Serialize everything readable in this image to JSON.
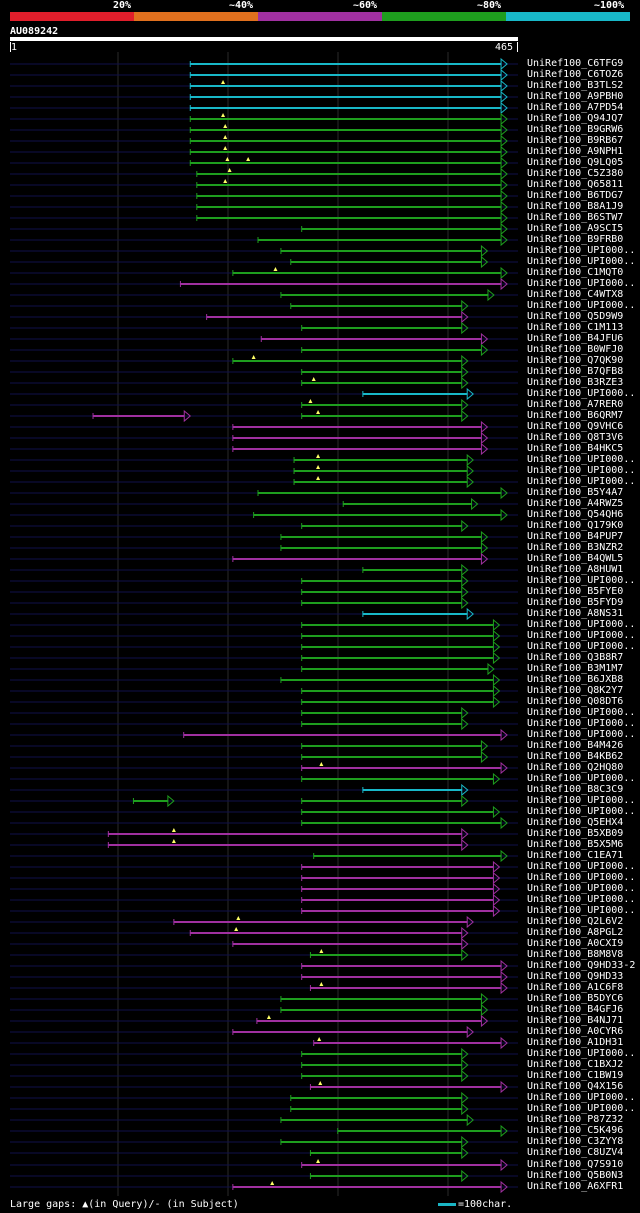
{
  "legend": {
    "items": [
      {
        "label": "20%",
        "color": "#e01e2b"
      },
      {
        "label": "~40%",
        "color": "#e0701e"
      },
      {
        "label": "~60%",
        "color": "#a030a0"
      },
      {
        "label": "~80%",
        "color": "#1e9e1e"
      },
      {
        "label": "~100%",
        "color": "#18b8c8"
      }
    ]
  },
  "query": {
    "id": "AU089242",
    "start": "1",
    "end": "465",
    "length": 465
  },
  "footer": {
    "gaps_text": "Large gaps: ▲(in Query)/- (in Subject)",
    "scale_text": "=100char."
  },
  "hits": [
    {
      "name": "UniRef100_C6TFG9",
      "color": "cyan",
      "start": 165,
      "end": 455,
      "q": []
    },
    {
      "name": "UniRef100_C6TOZ6",
      "color": "cyan",
      "start": 165,
      "end": 455,
      "q": []
    },
    {
      "name": "UniRef100_B3TLS2",
      "color": "cyan",
      "start": 165,
      "end": 455,
      "q": [
        195
      ]
    },
    {
      "name": "UniRef100_A9PBH0",
      "color": "cyan",
      "start": 165,
      "end": 455,
      "q": []
    },
    {
      "name": "UniRef100_A7PD54",
      "color": "cyan",
      "start": 165,
      "end": 455,
      "q": []
    },
    {
      "name": "UniRef100_Q94JQ7",
      "color": "green",
      "start": 165,
      "end": 455,
      "q": [
        195
      ]
    },
    {
      "name": "UniRef100_B9GRW6",
      "color": "green",
      "start": 165,
      "end": 455,
      "q": [
        197
      ]
    },
    {
      "name": "UniRef100_B9RB67",
      "color": "green",
      "start": 165,
      "end": 455,
      "q": [
        197
      ]
    },
    {
      "name": "UniRef100_A9NPH1",
      "color": "green",
      "start": 165,
      "end": 455,
      "q": [
        197
      ]
    },
    {
      "name": "UniRef100_Q9LQ05",
      "color": "green",
      "start": 165,
      "end": 455,
      "q": [
        199,
        218
      ]
    },
    {
      "name": "UniRef100_C5Z380",
      "color": "green",
      "start": 171,
      "end": 455,
      "q": [
        201
      ]
    },
    {
      "name": "UniRef100_Q65811",
      "color": "green",
      "start": 171,
      "end": 455,
      "q": [
        197
      ]
    },
    {
      "name": "UniRef100_B6TDG7",
      "color": "green",
      "start": 171,
      "end": 455,
      "q": []
    },
    {
      "name": "UniRef100_B8A1J9",
      "color": "green",
      "start": 171,
      "end": 455,
      "q": []
    },
    {
      "name": "UniRef100_B6STW7",
      "color": "green",
      "start": 171,
      "end": 455,
      "q": []
    },
    {
      "name": "UniRef100_A9SCI5",
      "color": "green",
      "start": 267,
      "end": 455,
      "q": []
    },
    {
      "name": "UniRef100_B9FRB0",
      "color": "green",
      "start": 227,
      "end": 455,
      "q": []
    },
    {
      "name": "UniRef100_UPI000..",
      "color": "green",
      "start": 248,
      "end": 437,
      "q": []
    },
    {
      "name": "UniRef100_UPI000..",
      "color": "green",
      "start": 257,
      "end": 437,
      "q": []
    },
    {
      "name": "UniRef100_C1MQT0",
      "color": "green",
      "start": 204,
      "end": 455,
      "q": [
        243
      ]
    },
    {
      "name": "UniRef100_UPI000..",
      "color": "purple",
      "start": 156,
      "end": 455,
      "q": []
    },
    {
      "name": "UniRef100_C4WTX8",
      "color": "green",
      "start": 248,
      "end": 443,
      "q": []
    },
    {
      "name": "UniRef100_UPI000..",
      "color": "green",
      "start": 257,
      "end": 419,
      "q": []
    },
    {
      "name": "UniRef100_Q5D9W9",
      "color": "purple",
      "start": 180,
      "end": 419,
      "q": []
    },
    {
      "name": "UniRef100_C1M113",
      "color": "green",
      "start": 267,
      "end": 419,
      "q": []
    },
    {
      "name": "UniRef100_B4JFU6",
      "color": "purple",
      "start": 230,
      "end": 437,
      "q": []
    },
    {
      "name": "UniRef100_B0WFJ0",
      "color": "green",
      "start": 267,
      "end": 437,
      "q": []
    },
    {
      "name": "UniRef100_Q7QK90",
      "color": "green",
      "start": 204,
      "end": 419,
      "q": [
        223
      ]
    },
    {
      "name": "UniRef100_B7QFB8",
      "color": "green",
      "start": 267,
      "end": 419,
      "q": []
    },
    {
      "name": "UniRef100_B3RZE3",
      "color": "green",
      "start": 267,
      "end": 419,
      "q": [
        278
      ]
    },
    {
      "name": "UniRef100_UPI000..",
      "color": "cyan",
      "start": 323,
      "end": 424,
      "q": []
    },
    {
      "name": "UniRef100_A7RER0",
      "color": "green",
      "start": 267,
      "end": 419,
      "q": [
        275
      ]
    },
    {
      "name": "UniRef100_B6QRM7",
      "color": "purple",
      "start": 76,
      "end": 165,
      "q": [],
      "extra": [
        {
          "start": 267,
          "end": 419,
          "q": [
            282
          ]
        }
      ]
    },
    {
      "name": "UniRef100_Q9VHC6",
      "color": "purple",
      "start": 204,
      "end": 437,
      "q": []
    },
    {
      "name": "UniRef100_Q8T3V6",
      "color": "purple",
      "start": 204,
      "end": 437,
      "q": []
    },
    {
      "name": "UniRef100_B4HKC5",
      "color": "purple",
      "start": 204,
      "end": 437,
      "q": []
    },
    {
      "name": "UniRef100_UPI000..",
      "color": "green",
      "start": 260,
      "end": 424,
      "q": [
        282
      ]
    },
    {
      "name": "UniRef100_UPI000..",
      "color": "green",
      "start": 260,
      "end": 424,
      "q": [
        282
      ]
    },
    {
      "name": "UniRef100_UPI000..",
      "color": "green",
      "start": 260,
      "end": 424,
      "q": [
        282
      ]
    },
    {
      "name": "UniRef100_B5Y4A7",
      "color": "green",
      "start": 227,
      "end": 455,
      "q": []
    },
    {
      "name": "UniRef100_A4RWZ5",
      "color": "green",
      "start": 305,
      "end": 428,
      "q": []
    },
    {
      "name": "UniRef100_Q54QH6",
      "color": "green",
      "start": 223,
      "end": 455,
      "q": []
    },
    {
      "name": "UniRef100_Q179K0",
      "color": "green",
      "start": 267,
      "end": 419,
      "q": []
    },
    {
      "name": "UniRef100_B4PUP7",
      "color": "green",
      "start": 248,
      "end": 437,
      "q": []
    },
    {
      "name": "UniRef100_B3NZR2",
      "color": "green",
      "start": 248,
      "end": 437,
      "q": []
    },
    {
      "name": "UniRef100_B4QWL5",
      "color": "purple",
      "start": 204,
      "end": 437,
      "q": []
    },
    {
      "name": "UniRef100_A8HUW1",
      "color": "green",
      "start": 323,
      "end": 419,
      "q": []
    },
    {
      "name": "UniRef100_UPI000..",
      "color": "green",
      "start": 267,
      "end": 419,
      "q": []
    },
    {
      "name": "UniRef100_B5FYE0",
      "color": "green",
      "start": 267,
      "end": 419,
      "q": []
    },
    {
      "name": "UniRef100_B5FYD9",
      "color": "green",
      "start": 267,
      "end": 419,
      "q": []
    },
    {
      "name": "UniRef100_A8NS31",
      "color": "cyan",
      "start": 323,
      "end": 424,
      "q": []
    },
    {
      "name": "UniRef100_UPI000..",
      "color": "green",
      "start": 267,
      "end": 448,
      "q": []
    },
    {
      "name": "UniRef100_UPI000..",
      "color": "green",
      "start": 267,
      "end": 448,
      "q": []
    },
    {
      "name": "UniRef100_UPI000..",
      "color": "green",
      "start": 267,
      "end": 448,
      "q": []
    },
    {
      "name": "UniRef100_Q3B8R7",
      "color": "green",
      "start": 267,
      "end": 448,
      "q": []
    },
    {
      "name": "UniRef100_B3M1M7",
      "color": "green",
      "start": 267,
      "end": 443,
      "q": []
    },
    {
      "name": "UniRef100_B6JXB8",
      "color": "green",
      "start": 248,
      "end": 448,
      "q": []
    },
    {
      "name": "UniRef100_Q8K2Y7",
      "color": "green",
      "start": 267,
      "end": 448,
      "q": []
    },
    {
      "name": "UniRef100_Q08DT6",
      "color": "green",
      "start": 267,
      "end": 448,
      "q": []
    },
    {
      "name": "UniRef100_UPI000..",
      "color": "green",
      "start": 267,
      "end": 419,
      "q": []
    },
    {
      "name": "UniRef100_UPI000..",
      "color": "green",
      "start": 267,
      "end": 419,
      "q": []
    },
    {
      "name": "UniRef100_UPI000..",
      "color": "purple",
      "start": 159,
      "end": 455,
      "q": []
    },
    {
      "name": "UniRef100_B4M426",
      "color": "green",
      "start": 267,
      "end": 437,
      "q": []
    },
    {
      "name": "UniRef100_B4KB62",
      "color": "green",
      "start": 267,
      "end": 437,
      "q": []
    },
    {
      "name": "UniRef100_Q2HQ80",
      "color": "purple",
      "start": 267,
      "end": 455,
      "q": [
        285
      ]
    },
    {
      "name": "UniRef100_UPI000..",
      "color": "green",
      "start": 267,
      "end": 448,
      "q": []
    },
    {
      "name": "UniRef100_B8C3C9",
      "color": "cyan",
      "start": 323,
      "end": 419,
      "q": []
    },
    {
      "name": "UniRef100_UPI000..",
      "color": "green",
      "start": 113,
      "end": 150,
      "q": [],
      "extra": [
        {
          "start": 267,
          "end": 419,
          "q": []
        }
      ]
    },
    {
      "name": "UniRef100_UPI000..",
      "color": "green",
      "start": 267,
      "end": 448,
      "q": []
    },
    {
      "name": "UniRef100_Q5EHX4",
      "color": "green",
      "start": 267,
      "end": 455,
      "q": []
    },
    {
      "name": "UniRef100_B5XB09",
      "color": "purple",
      "start": 90,
      "end": 419,
      "q": [
        150
      ]
    },
    {
      "name": "UniRef100_B5X5M6",
      "color": "purple",
      "start": 90,
      "end": 419,
      "q": [
        150
      ]
    },
    {
      "name": "UniRef100_C1EA71",
      "color": "green",
      "start": 278,
      "end": 455,
      "q": []
    },
    {
      "name": "UniRef100_UPI000..",
      "color": "purple",
      "start": 267,
      "end": 448,
      "q": []
    },
    {
      "name": "UniRef100_UPI000..",
      "color": "purple",
      "start": 267,
      "end": 448,
      "q": []
    },
    {
      "name": "UniRef100_UPI000..",
      "color": "purple",
      "start": 267,
      "end": 448,
      "q": []
    },
    {
      "name": "UniRef100_UPI000..",
      "color": "purple",
      "start": 267,
      "end": 448,
      "q": []
    },
    {
      "name": "UniRef100_UPI000..",
      "color": "purple",
      "start": 267,
      "end": 448,
      "q": []
    },
    {
      "name": "UniRef100_Q2L6V2",
      "color": "purple",
      "start": 150,
      "end": 424,
      "q": [
        209
      ]
    },
    {
      "name": "UniRef100_A8PGL2",
      "color": "purple",
      "start": 165,
      "end": 419,
      "q": [
        207
      ]
    },
    {
      "name": "UniRef100_A0CXI9",
      "color": "purple",
      "start": 204,
      "end": 419,
      "q": []
    },
    {
      "name": "UniRef100_B8M8V8",
      "color": "green",
      "start": 275,
      "end": 419,
      "q": [
        285
      ]
    },
    {
      "name": "UniRef100_Q9HD33-2",
      "color": "purple",
      "start": 267,
      "end": 455,
      "q": []
    },
    {
      "name": "UniRef100_Q9HD33",
      "color": "purple",
      "start": 267,
      "end": 455,
      "q": []
    },
    {
      "name": "UniRef100_A1C6F8",
      "color": "purple",
      "start": 275,
      "end": 455,
      "q": [
        285
      ]
    },
    {
      "name": "UniRef100_B5DYC6",
      "color": "green",
      "start": 248,
      "end": 437,
      "q": []
    },
    {
      "name": "UniRef100_B4GFJ6",
      "color": "green",
      "start": 248,
      "end": 437,
      "q": []
    },
    {
      "name": "UniRef100_B4NJ71",
      "color": "purple",
      "start": 226,
      "end": 437,
      "q": [
        237
      ]
    },
    {
      "name": "UniRef100_A0CYR6",
      "color": "purple",
      "start": 204,
      "end": 424,
      "q": []
    },
    {
      "name": "UniRef100_A1DH31",
      "color": "purple",
      "start": 278,
      "end": 455,
      "q": [
        283
      ]
    },
    {
      "name": "UniRef100_UPI000..",
      "color": "green",
      "start": 267,
      "end": 419,
      "q": []
    },
    {
      "name": "UniRef100_C1BXJ2",
      "color": "green",
      "start": 267,
      "end": 419,
      "q": []
    },
    {
      "name": "UniRef100_C1BW19",
      "color": "green",
      "start": 267,
      "end": 419,
      "q": []
    },
    {
      "name": "UniRef100_Q4X156",
      "color": "purple",
      "start": 275,
      "end": 455,
      "q": [
        284
      ]
    },
    {
      "name": "UniRef100_UPI000..",
      "color": "green",
      "start": 257,
      "end": 419,
      "q": []
    },
    {
      "name": "UniRef100_UPI000..",
      "color": "green",
      "start": 257,
      "end": 419,
      "q": []
    },
    {
      "name": "UniRef100_P87Z32",
      "color": "green",
      "start": 248,
      "end": 424,
      "q": []
    },
    {
      "name": "UniRef100_C5K496",
      "color": "green",
      "start": 300,
      "end": 455,
      "q": []
    },
    {
      "name": "UniRef100_C3ZYY8",
      "color": "green",
      "start": 248,
      "end": 419,
      "q": []
    },
    {
      "name": "UniRef100_C8UZV4",
      "color": "green",
      "start": 275,
      "end": 419,
      "q": []
    },
    {
      "name": "UniRef100_Q7S910",
      "color": "purple",
      "start": 267,
      "end": 455,
      "q": [
        282
      ]
    },
    {
      "name": "UniRef100_Q5B0N3",
      "color": "green",
      "start": 275,
      "end": 419,
      "q": []
    },
    {
      "name": "UniRef100_A6XFR1",
      "color": "purple",
      "start": 204,
      "end": 455,
      "q": [
        240
      ]
    }
  ]
}
